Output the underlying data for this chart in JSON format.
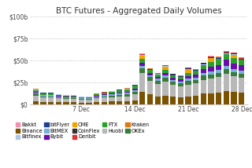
{
  "title": "BTC Futures - Aggregated Daily Volumes",
  "yticks": [
    0,
    25,
    50,
    75,
    100
  ],
  "ytick_labels": [
    "$0",
    "$25b",
    "$50b",
    "$75b",
    "$100b"
  ],
  "xtick_labels": [
    "7 Dec",
    "14 Dec",
    "21 Dec",
    "28 Dec"
  ],
  "background_color": "#ffffff",
  "grid_color": "#cccccc",
  "colors": {
    "Bakkt": "#f48fb1",
    "Binance": "#7B5200",
    "Bitfinex": "#aec6e8",
    "bitFlyer": "#1f3f8f",
    "BitMEX": "#7ab0d8",
    "Bybit": "#6a0dad",
    "CME": "#f0a500",
    "CoinFlex": "#333333",
    "Deribit": "#e03030",
    "FTX": "#2ca02c",
    "Huobi": "#b8b8b8",
    "Kraken": "#e07818",
    "OKEx": "#3a7a3a"
  },
  "n_days": 28,
  "data": {
    "Binance": [
      3,
      2.5,
      2.5,
      2,
      2,
      2,
      1.5,
      1.5,
      2,
      2.5,
      3,
      3,
      3,
      4,
      14,
      11,
      9,
      10,
      9,
      8,
      9,
      10,
      12,
      12,
      13,
      15,
      14,
      13
    ],
    "Huobi": [
      7,
      5,
      5,
      4.5,
      4,
      4,
      3.5,
      3.5,
      4.5,
      5,
      5,
      5.5,
      6,
      7,
      22,
      16,
      14,
      16,
      13,
      12,
      13,
      14,
      16,
      17,
      18,
      20,
      18,
      17
    ],
    "OKEx": [
      2,
      1.5,
      1.5,
      1.5,
      1.2,
      1.2,
      1,
      1,
      1.5,
      1.5,
      1.5,
      2,
      2.5,
      3,
      5,
      4,
      4,
      4.5,
      4,
      4,
      4.5,
      4,
      5,
      5,
      5,
      5,
      4.5,
      4.5
    ],
    "BitMEX": [
      1.5,
      1.2,
      1.2,
      1,
      1,
      1,
      0.8,
      0.8,
      1,
      1.2,
      1.5,
      1.5,
      1.5,
      2,
      2.5,
      2,
      2,
      2.5,
      2,
      2,
      2.5,
      2.5,
      3,
      3.5,
      3.5,
      4,
      3.5,
      3.5
    ],
    "Bybit": [
      0.8,
      0.6,
      0.6,
      0.5,
      0.5,
      0.5,
      0.4,
      0.4,
      0.6,
      0.8,
      1,
      1.2,
      1.5,
      2,
      4,
      3,
      2.5,
      3,
      2.5,
      2.5,
      3,
      3.5,
      4,
      5,
      5.5,
      6.5,
      6.5,
      6.5
    ],
    "FTX": [
      2,
      1.5,
      1.5,
      1.2,
      1.2,
      1.2,
      1,
      1,
      1.5,
      2,
      2.5,
      2.5,
      2.5,
      3,
      4,
      3,
      2.5,
      3,
      2.5,
      2.5,
      4,
      4,
      5,
      6,
      6.5,
      7,
      6,
      6
    ],
    "CME": [
      0,
      0,
      0,
      0,
      0,
      0,
      0,
      0,
      0,
      0,
      0,
      0,
      0,
      0,
      4,
      0,
      0,
      4,
      0,
      0,
      4,
      0,
      0,
      4,
      0,
      0,
      4,
      0
    ],
    "Bitfinex": [
      0.4,
      0.3,
      0.3,
      0.3,
      0.2,
      0.2,
      0.2,
      0.2,
      0.3,
      0.3,
      0.3,
      0.4,
      0.4,
      0.4,
      0.5,
      0.4,
      0.4,
      0.5,
      0.4,
      0.4,
      0.5,
      0.5,
      0.6,
      0.6,
      0.7,
      0.7,
      0.7,
      0.7
    ],
    "bitFlyer": [
      0.3,
      0.2,
      0.2,
      0.2,
      0.15,
      0.15,
      0.15,
      0.15,
      0.2,
      0.25,
      0.25,
      0.3,
      0.3,
      0.35,
      0.5,
      0.4,
      0.4,
      0.5,
      0.4,
      0.4,
      0.5,
      0.5,
      0.55,
      0.6,
      0.65,
      0.7,
      0.65,
      0.65
    ],
    "CoinFlex": [
      0.08,
      0.07,
      0.07,
      0.06,
      0.06,
      0.06,
      0.05,
      0.05,
      0.07,
      0.08,
      0.08,
      0.09,
      0.1,
      0.1,
      0.15,
      0.12,
      0.12,
      0.15,
      0.12,
      0.12,
      0.15,
      0.15,
      0.18,
      0.18,
      0.2,
      0.2,
      0.2,
      0.2
    ],
    "Deribit": [
      0.15,
      0.12,
      0.12,
      0.1,
      0.1,
      0.1,
      0.1,
      0.1,
      0.12,
      0.15,
      0.15,
      0.2,
      0.25,
      0.3,
      0.7,
      0.5,
      0.45,
      0.55,
      0.45,
      0.45,
      0.55,
      0.55,
      0.65,
      0.75,
      0.85,
      0.95,
      0.95,
      0.95
    ],
    "Kraken": [
      0.15,
      0.12,
      0.12,
      0.1,
      0.1,
      0.1,
      0.08,
      0.08,
      0.1,
      0.12,
      0.12,
      0.15,
      0.15,
      0.15,
      0.25,
      0.2,
      0.18,
      0.22,
      0.18,
      0.18,
      0.22,
      0.22,
      0.25,
      0.3,
      0.3,
      0.38,
      0.32,
      0.32
    ],
    "Bakkt": [
      0.04,
      0.03,
      0.03,
      0.03,
      0.02,
      0.02,
      0.02,
      0.02,
      0.03,
      0.03,
      0.03,
      0.04,
      0.04,
      0.04,
      0.08,
      0.06,
      0.06,
      0.07,
      0.06,
      0.06,
      0.07,
      0.07,
      0.08,
      0.08,
      0.09,
      0.09,
      0.09,
      0.09
    ]
  },
  "title_fontsize": 7.5,
  "tick_fontsize": 5.5,
  "legend_fontsize": 4.8
}
